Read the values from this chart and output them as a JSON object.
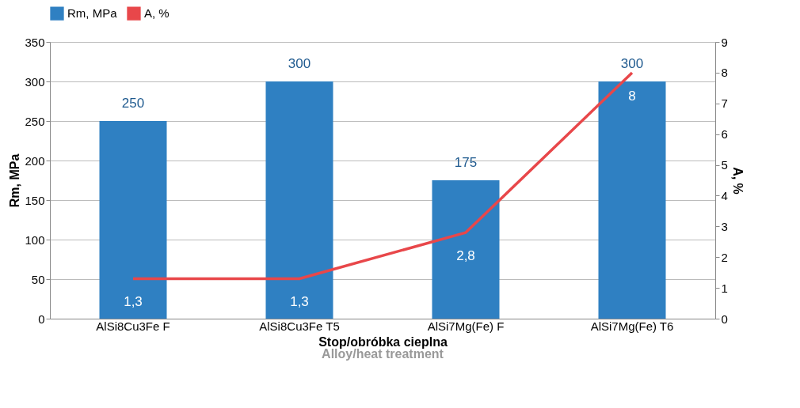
{
  "chart_data": {
    "type": "bar",
    "xlabel": "Stop/obróbka cieplna",
    "ylabel": "Rm, MPa",
    "y2label": "A, %",
    "categories": [
      "AlSi8Cu3Fe F",
      "AlSi8Cu3Fe T5",
      "AlSi7Mg(Fe) F",
      "AlSi7Mg(Fe) T6"
    ],
    "series": [
      {
        "name": "Rm, MPa",
        "type": "bar",
        "color": "#2f80c2",
        "values": [
          250,
          300,
          175,
          300
        ],
        "value_labels": [
          "250",
          "300",
          "175",
          "300"
        ]
      },
      {
        "name": "A, %",
        "type": "line",
        "axis": "y2",
        "color": "#e8474a",
        "values": [
          1.3,
          1.3,
          2.8,
          8
        ],
        "value_labels": [
          "1,3",
          "1,3",
          "2,8",
          "8"
        ]
      }
    ],
    "ylim": [
      0,
      350
    ],
    "yticks": [
      0,
      50,
      100,
      150,
      200,
      250,
      300,
      350
    ],
    "y2lim": [
      0,
      9
    ],
    "y2ticks": [
      0,
      1,
      2,
      3,
      4,
      5,
      6,
      7,
      8,
      9
    ],
    "grid": "y",
    "legend": "top",
    "marker": "none",
    "line_style": "solid",
    "annotations": [
      "Alloy/heat treatment"
    ]
  }
}
